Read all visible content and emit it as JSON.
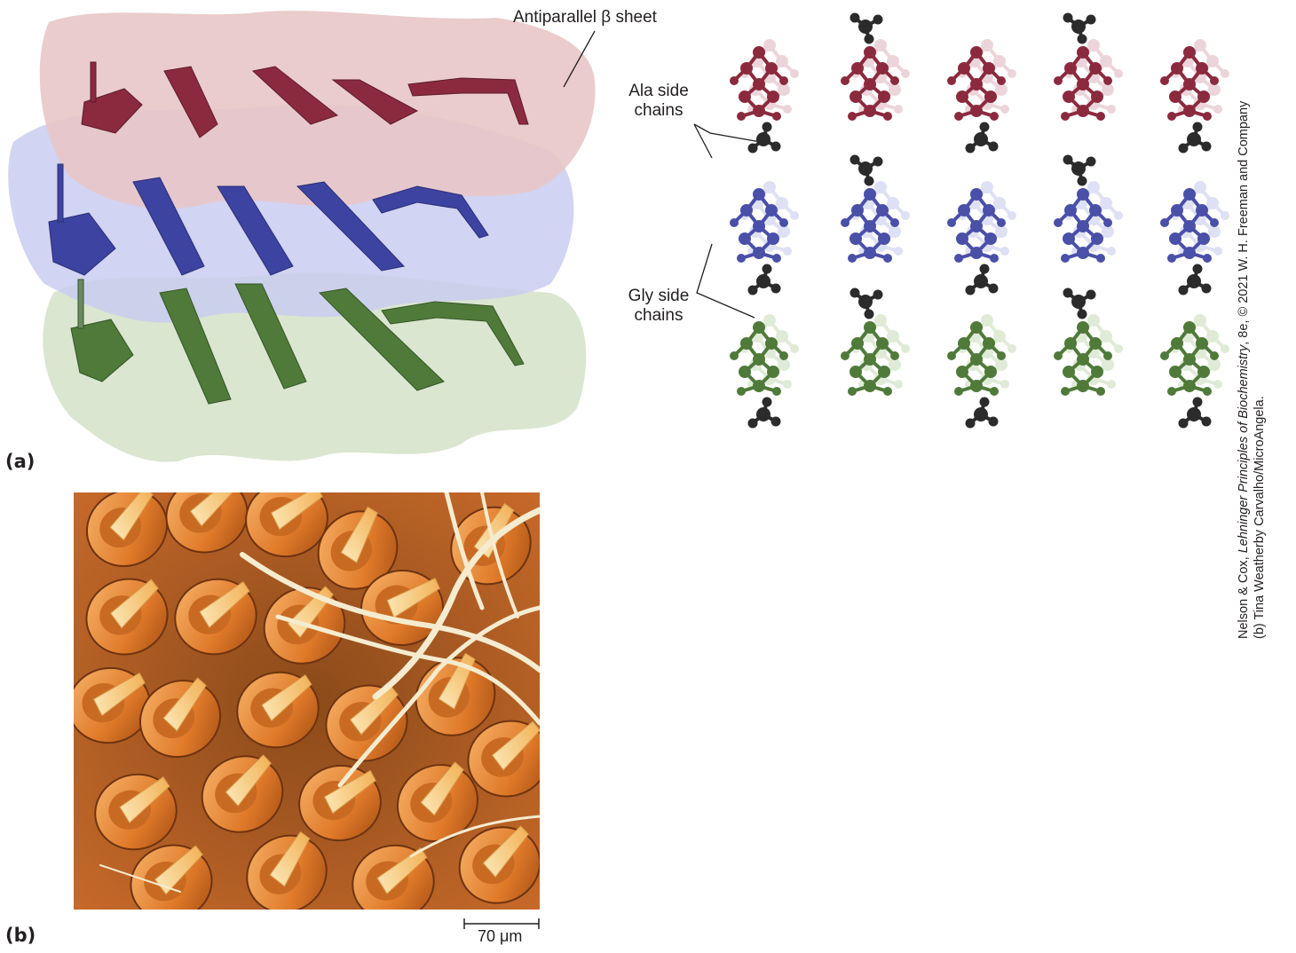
{
  "figure": {
    "panel_a_letter": "(a)",
    "panel_b_letter": "(b)"
  },
  "panel_a": {
    "label_sheet": "Antiparallel β sheet",
    "label_ala_line1": "Ala side",
    "label_ala_line2": "chains",
    "label_gly_line1": "Gly side",
    "label_gly_line2": "chains",
    "colors": {
      "top_layer": "#8b2a3e",
      "middle_layer": "#4a4fa8",
      "bottom_layer": "#4f7a3a",
      "top_surface": "#e8c6c8",
      "middle_surface": "#c9cdf0",
      "bottom_surface": "#d3e2c8",
      "ala_atoms": "#2b2b2b"
    }
  },
  "panel_b": {
    "scale_value": "70",
    "scale_unit": "μm"
  },
  "credit": {
    "line1_pre": "Nelson & Cox, ",
    "line1_italic": "Lehninger Principles of Biochemistry",
    "line1_post": ", 8e, © 2021 W. H. Freeman and Company",
    "line2": "(b) Tina Weatherby Carvalho/MicroAngela."
  }
}
